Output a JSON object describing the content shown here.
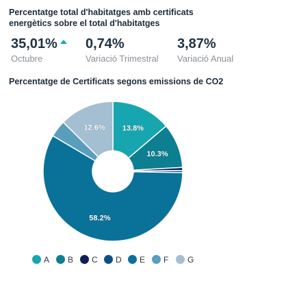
{
  "header": {
    "title": "Percentatge total d'habitatges amb certificats energètics sobre el total d'habitatges"
  },
  "kpis": [
    {
      "value": "35,01%",
      "label": "Octubre",
      "trend": "up"
    },
    {
      "value": "0,74%",
      "label": "Variació Trimestral"
    },
    {
      "value": "3,87%",
      "label": "Variació Anual"
    }
  ],
  "colors": {
    "trend_up": "#17a6b0"
  },
  "chart_data": {
    "type": "pie",
    "title": "Percentatge de Certificats segons emissions de CO2",
    "legend_position": "bottom",
    "categories": [
      "A",
      "B",
      "C",
      "D",
      "E",
      "F",
      "G"
    ],
    "values": [
      13.8,
      10.3,
      0.7,
      0.5,
      58.2,
      3.9,
      12.6
    ],
    "data_labels": [
      "13.8%",
      "10.3%",
      "",
      "",
      "58.2%",
      "",
      "12.6%"
    ],
    "colors": [
      "#17a6b0",
      "#0c7f91",
      "#0d1f55",
      "#0c4f86",
      "#0a7299",
      "#5a9ebd",
      "#a4bfd1"
    ]
  }
}
